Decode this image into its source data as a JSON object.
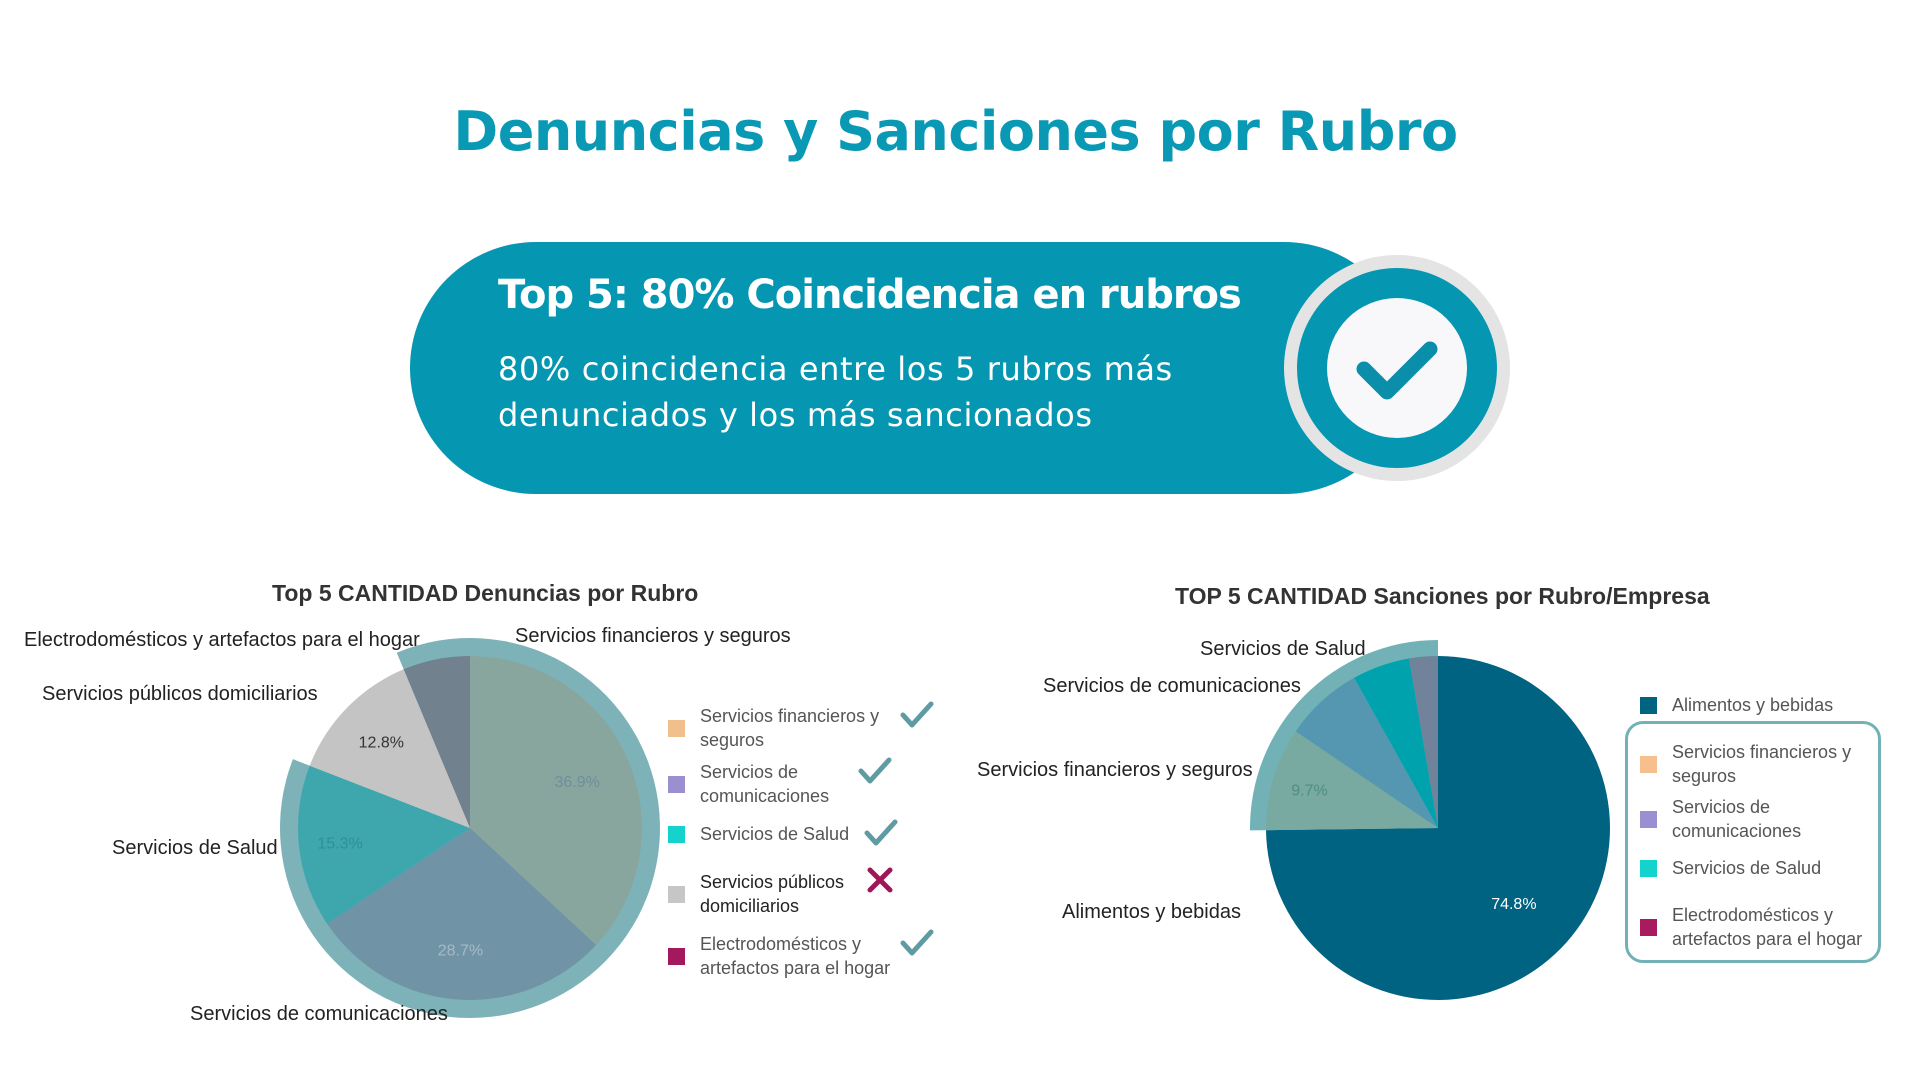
{
  "header": {
    "title": "Denuncias y Sanciones por Rubro"
  },
  "banner": {
    "title": "Top 5: 80% Coincidencia en rubros",
    "subtitle": "80% coincidencia entre los 5 rubros más denunciados y los más sancionados",
    "icon": "check-circle-icon",
    "color": "#0596b1"
  },
  "chart_data": [
    {
      "type": "pie",
      "title": "Top 5 CANTIDAD Denuncias por Rubro",
      "slices": [
        {
          "label": "Servicios financieros y seguros",
          "value": 36.9,
          "pct_label": "36.9%",
          "color": "#89a69e"
        },
        {
          "label": "Servicios de comunicaciones",
          "value": 28.7,
          "pct_label": "28.7%",
          "color": "#7094a5"
        },
        {
          "label": "Servicios de Salud",
          "value": 15.3,
          "pct_label": "15.3%",
          "color": "#3ea6ad"
        },
        {
          "label": "Servicios públicos domiciliarios",
          "value": 12.8,
          "pct_label": "12.8%",
          "color": "#c4c4c4"
        },
        {
          "label": "Electrodomésticos y artefactos para el hogar",
          "value": 6.3,
          "pct_label": "",
          "color": "#71818d"
        }
      ],
      "legend": [
        {
          "label": "Servicios financieros y seguros",
          "color": "#f1bf8c",
          "mark": "check"
        },
        {
          "label": "Servicios de comunicaciones",
          "color": "#9b8fd0",
          "mark": "check"
        },
        {
          "label": "Servicios de Salud",
          "color": "#15d2cc",
          "mark": "check"
        },
        {
          "label": "Servicios públicos domiciliarios",
          "color": "#c6c6c6",
          "mark": "cross"
        },
        {
          "label": "Electrodomésticos y artefactos para el hogar",
          "color": "#a4195e",
          "mark": "check"
        }
      ],
      "highlight": "#7db3b8",
      "legend_placement": "right"
    },
    {
      "type": "pie",
      "title": "TOP 5 CANTIDAD Sanciones por Rubro/Empresa",
      "slices": [
        {
          "label": "Alimentos y bebidas",
          "value": 74.8,
          "pct_label": "74.8%",
          "color": "#006382"
        },
        {
          "label": "Servicios financieros y seguros",
          "value": 9.7,
          "pct_label": "9.7%",
          "color": "#78aaa1"
        },
        {
          "label": "Servicios de comunicaciones",
          "value": 7.4,
          "pct_label": "",
          "color": "#5597b0"
        },
        {
          "label": "Servicios de Salud",
          "value": 5.4,
          "pct_label": "",
          "color": "#00a3ad"
        },
        {
          "label": "Electrodomésticos y artefactos para el hogar",
          "value": 2.7,
          "pct_label": "",
          "color": "#70839a"
        }
      ],
      "legend": [
        {
          "label": "Alimentos y bebidas",
          "color": "#006382"
        },
        {
          "label": "Servicios financieros y seguros",
          "color": "#f7be8e"
        },
        {
          "label": "Servicios de comunicaciones",
          "color": "#9a8fd1"
        },
        {
          "label": "Servicios de Salud",
          "color": "#13d3cd"
        },
        {
          "label": "Electrodomésticos y artefactos para el hogar",
          "color": "#a81b60"
        }
      ],
      "highlight": "#72b2b6",
      "legend_placement": "right"
    }
  ]
}
